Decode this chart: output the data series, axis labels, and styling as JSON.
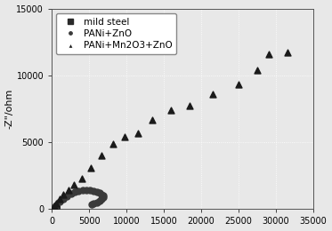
{
  "title": "",
  "xlabel": "",
  "ylabel": "-Z\"/ohm",
  "xlim": [
    0,
    35000
  ],
  "ylim": [
    0,
    15000
  ],
  "xticks": [
    0,
    5000,
    10000,
    15000,
    20000,
    25000,
    30000,
    35000
  ],
  "yticks": [
    0,
    5000,
    10000,
    15000
  ],
  "background_color": "#e8e8e8",
  "plot_bg_color": "#e8e8e8",
  "mild_steel": {
    "x": [
      30,
      60,
      100,
      150,
      200,
      250,
      300,
      380,
      450,
      520,
      580,
      640,
      680,
      700,
      680,
      640
    ],
    "y": [
      5,
      15,
      30,
      55,
      75,
      90,
      100,
      100,
      95,
      80,
      65,
      50,
      35,
      20,
      10,
      5
    ],
    "color": "#2a2a2a",
    "marker": "s",
    "markersize": 4,
    "label": "mild steel"
  },
  "pani_zno": {
    "x": [
      100,
      300,
      600,
      1000,
      1500,
      2000,
      2600,
      3100,
      3600,
      4100,
      4600,
      5100,
      5600,
      6000,
      6400,
      6700,
      6900,
      6900,
      6700,
      6400,
      6000,
      5600,
      5300
    ],
    "y": [
      30,
      130,
      280,
      530,
      780,
      980,
      1150,
      1280,
      1380,
      1420,
      1430,
      1400,
      1360,
      1300,
      1220,
      1120,
      1000,
      880,
      750,
      620,
      520,
      440,
      380
    ],
    "color": "#3a3a3a",
    "marker": "o",
    "markersize": 5,
    "label": "PANi+ZnO"
  },
  "pani_mn2o3_zno": {
    "x": [
      100,
      300,
      600,
      1000,
      1500,
      2200,
      3000,
      4000,
      5200,
      6700,
      8200,
      9800,
      11500,
      13500,
      16000,
      18500,
      21500,
      25000,
      27500,
      29000,
      31500
    ],
    "y": [
      50,
      200,
      450,
      750,
      1100,
      1400,
      1800,
      2300,
      3100,
      4000,
      4900,
      5400,
      5700,
      6700,
      7400,
      7700,
      8600,
      9300,
      10400,
      11600,
      11700
    ],
    "color": "#1a1a1a",
    "marker": "^",
    "markersize": 5,
    "label": "PANi+Mn2O3+ZnO"
  },
  "grid_color": "#ffffff",
  "grid_alpha": 1.0,
  "tick_fontsize": 7,
  "label_fontsize": 8,
  "legend_fontsize": 7.5
}
